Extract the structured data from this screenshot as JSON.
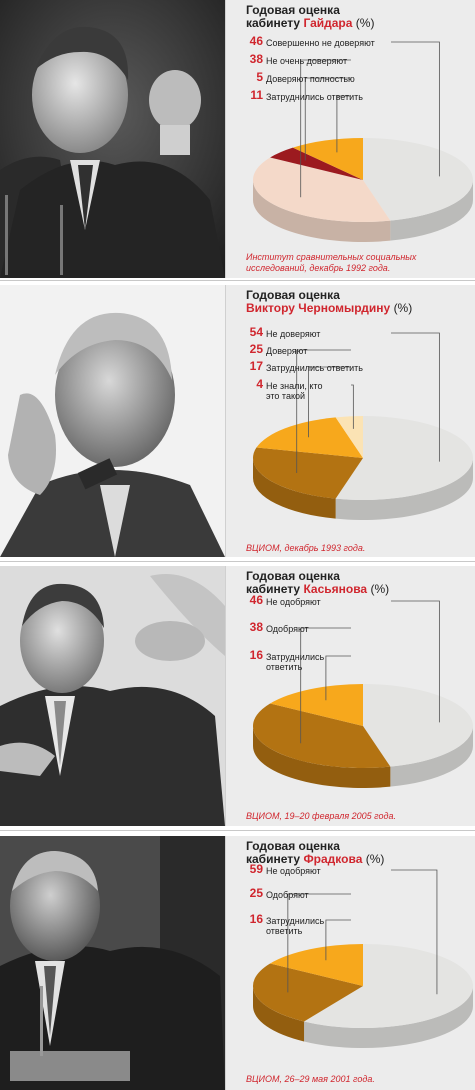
{
  "colors": {
    "gray": "#e4e4e2",
    "dark_gold": "#b37312",
    "orange": "#f7a81c",
    "crimson": "#9c1a1f",
    "peach": "#f4d9c9",
    "cream": "#fbe3b4",
    "accent_red": "#d0262e"
  },
  "panels": [
    {
      "title_line1": "Годовая оценка",
      "title_prefix": "кабинету",
      "title_name": "Гайдара",
      "title_pct": "(%)",
      "source": "Институт сравнительных социальных исследований, декабрь 1992 года."
    },
    {
      "title_line1": "Годовая оценка",
      "title_prefix": "",
      "title_name": "Виктору Черномырдину",
      "title_pct": "(%)",
      "source": "ВЦИОМ, декабрь 1993 года."
    },
    {
      "title_line1": "Годовая оценка",
      "title_prefix": "кабинету",
      "title_name": "Касьянова",
      "title_pct": "(%)",
      "source": "ВЦИОМ, 19–20 февраля 2005 года."
    },
    {
      "title_line1": "Годовая оценка",
      "title_prefix": "кабинету",
      "title_name": "Фрадкова",
      "title_pct": "(%)",
      "source": "ВЦИОМ, 26–29 мая 2001 года."
    }
  ],
  "chart_data": [
    {
      "type": "pie",
      "title": "Годовая оценка кабинету Гайдара (%)",
      "categories": [
        "Совершенно не доверяют",
        "Не очень доверяют",
        "Доверяют полностью",
        "Затруднились ответить"
      ],
      "values": [
        46,
        38,
        5,
        11
      ],
      "labels": [
        "46",
        "38",
        "5",
        "11"
      ],
      "colors": [
        "#e4e4e2",
        "#f4d9c9",
        "#9c1a1f",
        "#f7a81c"
      ]
    },
    {
      "type": "pie",
      "title": "Годовая оценка Виктору Черномырдину (%)",
      "categories": [
        "Не доверяют",
        "Доверяют",
        "Затруднились ответить",
        "Не знали, кто это такой"
      ],
      "values": [
        54,
        25,
        17,
        4
      ],
      "labels": [
        "54",
        "25",
        "17",
        "4"
      ],
      "colors": [
        "#e4e4e2",
        "#b37312",
        "#f7a81c",
        "#fbe3b4"
      ]
    },
    {
      "type": "pie",
      "title": "Годовая оценка кабинету Касьянова (%)",
      "categories": [
        "Не одобряют",
        "Одобряют",
        "Затруднились ответить"
      ],
      "values": [
        46,
        38,
        16
      ],
      "labels": [
        "46",
        "38",
        "16"
      ],
      "colors": [
        "#e4e4e2",
        "#b37312",
        "#f7a81c"
      ]
    },
    {
      "type": "pie",
      "title": "Годовая оценка кабинету Фрадкова (%)",
      "categories": [
        "Не одобряют",
        "Одобряют",
        "Затруднились ответить"
      ],
      "values": [
        59,
        25,
        16
      ],
      "labels": [
        "59",
        "25",
        "16"
      ],
      "colors": [
        "#e4e4e2",
        "#b37312",
        "#f7a81c"
      ]
    }
  ]
}
